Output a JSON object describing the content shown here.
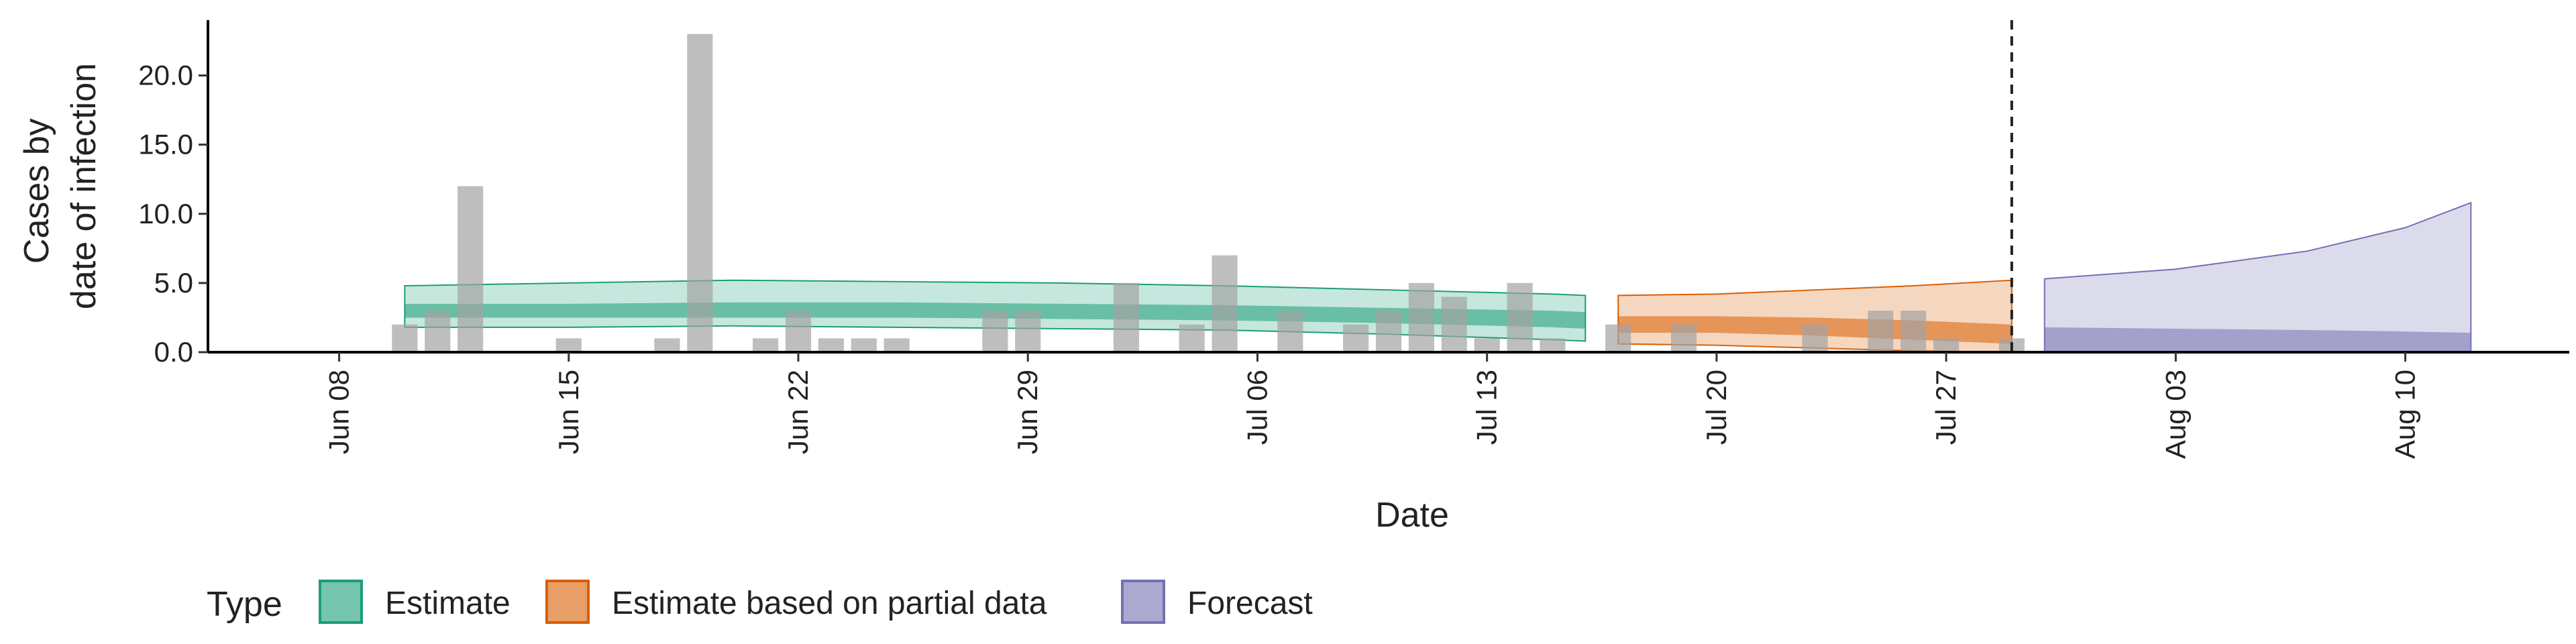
{
  "chart_data": {
    "type": "bar",
    "xlabel": "Date",
    "ylabel_lines": [
      "Cases by",
      "date of infection"
    ],
    "ylim": [
      0,
      24
    ],
    "yticks": [
      0,
      5,
      10,
      15,
      20
    ],
    "ytick_labels": [
      "0.0",
      "5.0",
      "10.0",
      "15.0",
      "20.0"
    ],
    "xrange": [
      "2020-06-04",
      "2020-08-15"
    ],
    "xticks": [
      "2020-06-08",
      "2020-06-15",
      "2020-06-22",
      "2020-06-29",
      "2020-07-06",
      "2020-07-13",
      "2020-07-20",
      "2020-07-27",
      "2020-08-03",
      "2020-08-10"
    ],
    "xtick_labels": [
      "Jun 08",
      "Jun 15",
      "Jun 22",
      "Jun 29",
      "Jul 06",
      "Jul 13",
      "Jul 20",
      "Jul 27",
      "Aug 03",
      "Aug 10"
    ],
    "forecast_start_line": "2020-07-29",
    "bars": [
      {
        "date": "2020-06-10",
        "value": 2
      },
      {
        "date": "2020-06-11",
        "value": 3
      },
      {
        "date": "2020-06-12",
        "value": 12
      },
      {
        "date": "2020-06-15",
        "value": 1
      },
      {
        "date": "2020-06-18",
        "value": 1
      },
      {
        "date": "2020-06-19",
        "value": 23
      },
      {
        "date": "2020-06-21",
        "value": 1
      },
      {
        "date": "2020-06-22",
        "value": 3
      },
      {
        "date": "2020-06-23",
        "value": 1
      },
      {
        "date": "2020-06-24",
        "value": 1
      },
      {
        "date": "2020-06-25",
        "value": 1
      },
      {
        "date": "2020-06-28",
        "value": 3
      },
      {
        "date": "2020-06-29",
        "value": 3
      },
      {
        "date": "2020-07-02",
        "value": 5
      },
      {
        "date": "2020-07-04",
        "value": 2
      },
      {
        "date": "2020-07-05",
        "value": 7
      },
      {
        "date": "2020-07-07",
        "value": 3
      },
      {
        "date": "2020-07-09",
        "value": 2
      },
      {
        "date": "2020-07-10",
        "value": 3
      },
      {
        "date": "2020-07-11",
        "value": 5
      },
      {
        "date": "2020-07-12",
        "value": 4
      },
      {
        "date": "2020-07-13",
        "value": 1
      },
      {
        "date": "2020-07-14",
        "value": 5
      },
      {
        "date": "2020-07-15",
        "value": 1
      },
      {
        "date": "2020-07-17",
        "value": 2
      },
      {
        "date": "2020-07-19",
        "value": 2
      },
      {
        "date": "2020-07-23",
        "value": 2
      },
      {
        "date": "2020-07-25",
        "value": 3
      },
      {
        "date": "2020-07-26",
        "value": 3
      },
      {
        "date": "2020-07-27",
        "value": 1
      },
      {
        "date": "2020-07-29",
        "value": 1
      }
    ],
    "series": [
      {
        "name": "Estimate",
        "color": "#1b9e77",
        "x": [
          "2020-06-10",
          "2020-06-15",
          "2020-06-20",
          "2020-06-25",
          "2020-06-30",
          "2020-07-05",
          "2020-07-10",
          "2020-07-15",
          "2020-07-16"
        ],
        "upper90": [
          4.8,
          5.0,
          5.2,
          5.1,
          5.0,
          4.8,
          4.5,
          4.2,
          4.1
        ],
        "upper50": [
          3.5,
          3.5,
          3.6,
          3.6,
          3.5,
          3.4,
          3.2,
          3.0,
          2.9
        ],
        "lower50": [
          2.5,
          2.5,
          2.5,
          2.5,
          2.4,
          2.3,
          2.1,
          1.8,
          1.7
        ],
        "lower90": [
          1.8,
          1.8,
          1.9,
          1.8,
          1.7,
          1.6,
          1.3,
          0.9,
          0.8
        ]
      },
      {
        "name": "Estimate based on partial data",
        "color": "#d95f02",
        "x": [
          "2020-07-17",
          "2020-07-20",
          "2020-07-23",
          "2020-07-26",
          "2020-07-29"
        ],
        "upper90": [
          4.1,
          4.2,
          4.5,
          4.8,
          5.2
        ],
        "upper50": [
          2.6,
          2.6,
          2.5,
          2.3,
          2.0
        ],
        "lower50": [
          1.4,
          1.4,
          1.2,
          0.9,
          0.6
        ],
        "lower90": [
          0.6,
          0.5,
          0.3,
          0.1,
          0.0
        ]
      },
      {
        "name": "Forecast",
        "color": "#7570b3",
        "x": [
          "2020-07-30",
          "2020-08-03",
          "2020-08-07",
          "2020-08-10",
          "2020-08-12"
        ],
        "upper90": [
          5.3,
          6.0,
          7.3,
          9.0,
          10.8
        ],
        "upper50": [
          1.8,
          1.7,
          1.6,
          1.5,
          1.4
        ],
        "lower50": [
          0.0,
          0.0,
          0.0,
          0.0,
          0.0
        ],
        "lower90": [
          0.0,
          0.0,
          0.0,
          0.0,
          0.0
        ]
      }
    ],
    "legend": {
      "title": "Type",
      "position": "bottom-left",
      "items": [
        "Estimate",
        "Estimate based on partial data",
        "Forecast"
      ]
    }
  }
}
